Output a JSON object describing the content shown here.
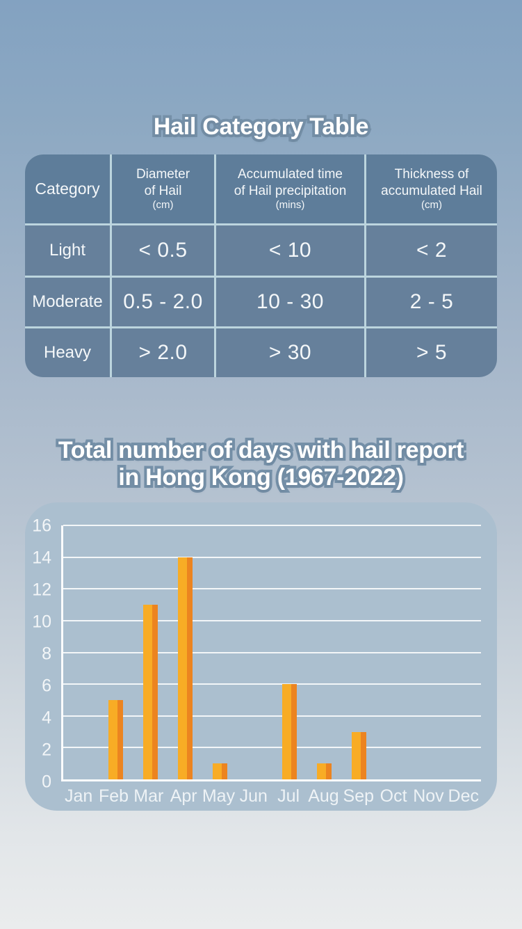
{
  "page": {
    "table_title": "Hail Category Table",
    "chart_title_line1": "Total number of days with hail report",
    "chart_title_line2": "in Hong Kong (1967-2022)"
  },
  "table": {
    "headers": [
      {
        "lines": [
          "Category"
        ],
        "unit": ""
      },
      {
        "lines": [
          "Diameter",
          "of Hail"
        ],
        "unit": "(cm)"
      },
      {
        "lines": [
          "Accumulated time",
          "of Hail precipitation"
        ],
        "unit": "(mins)"
      },
      {
        "lines": [
          "Thickness of",
          "accumulated Hail"
        ],
        "unit": "(cm)"
      }
    ],
    "rows": [
      {
        "cells": [
          "Light",
          "< 0.5",
          "< 10",
          "< 2"
        ]
      },
      {
        "cells": [
          "Moderate",
          "0.5 - 2.0",
          "10 - 30",
          "2 - 5"
        ]
      },
      {
        "cells": [
          "Heavy",
          "> 2.0",
          "> 30",
          "> 5"
        ]
      }
    ]
  },
  "chart_data": {
    "type": "bar",
    "title": "Total number of days with hail report in Hong Kong (1967-2022)",
    "xlabel": "",
    "ylabel": "",
    "categories": [
      "Jan",
      "Feb",
      "Mar",
      "Apr",
      "May",
      "Jun",
      "Jul",
      "Aug",
      "Sep",
      "Oct",
      "Nov",
      "Dec"
    ],
    "values": [
      0,
      5,
      11,
      14,
      1,
      0,
      6,
      1,
      3,
      0,
      0,
      0
    ],
    "ylim": [
      0,
      16
    ],
    "ytick_step": 2,
    "grid": true,
    "legend": false,
    "bar_color": "#f8ac25",
    "bar_edge_color": "#ec8420"
  },
  "colors": {
    "background_top": "#84a2c0",
    "background_bottom": "#e9eced",
    "table_header_bg": "#5e7d9a",
    "table_row_bg": "#66809b",
    "table_border": "#bcd5de",
    "panel_bg": "#abbfcf",
    "title_text": "#ffffff",
    "title_outline": "#7590a8"
  }
}
